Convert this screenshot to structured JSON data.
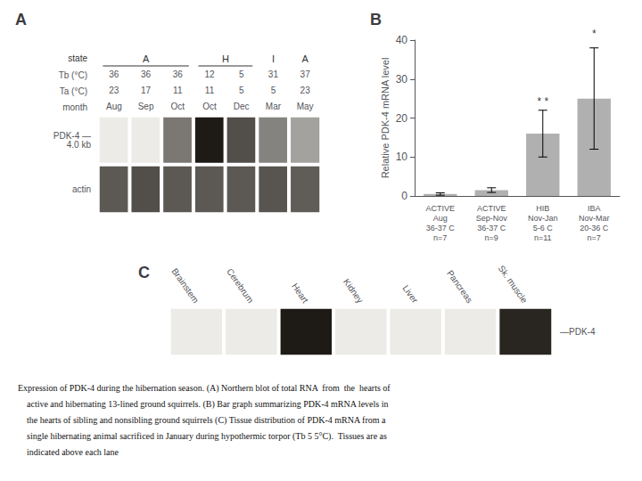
{
  "chart_data": [
    {
      "type": "heatmap",
      "title": "A",
      "categories": [
        "Aug",
        "Sep",
        "Oct",
        "Oct",
        "Dec",
        "Mar",
        "May"
      ],
      "xlabel": "month",
      "rows": [
        "PDK-4 —\n4.0 kb",
        "actin"
      ],
      "cells": [
        [
          0.0,
          0.0,
          0.55,
          1.0,
          0.75,
          0.5,
          0.35
        ],
        [
          0.7,
          0.75,
          0.7,
          0.7,
          0.7,
          0.72,
          0.68
        ]
      ],
      "header_rows": [
        {
          "label": "Tb (°C)",
          "values": [
            "36",
            "36",
            "36",
            "12",
            "5",
            "31",
            "37"
          ]
        },
        {
          "label": "Ta (°C)",
          "values": [
            "23",
            "17",
            "11",
            "11",
            "5",
            "5",
            "23"
          ]
        }
      ],
      "state_label": "state",
      "states": [
        {
          "label": "A",
          "lanes": 3
        },
        {
          "label": "H",
          "lanes": 2
        },
        {
          "label": "I",
          "lanes": 1
        },
        {
          "label": "A",
          "lanes": 1
        }
      ]
    },
    {
      "type": "bar",
      "title": "B",
      "categories": [
        "ACTIVE\nAug\n36-37 C\nn=7",
        "ACTIVE\nSep-Nov\n36-37 C\nn=9",
        "HIB\nNov-Jan\n5-6 C\nn=11",
        "IBA\nNov-Mar\n20-36 C\nn=7"
      ],
      "values": [
        0.5,
        1.5,
        16.0,
        25.0
      ],
      "errors": [
        0.3,
        0.6,
        6.0,
        13.0
      ],
      "color": "#b0b0b0",
      "ylabel": "Relative PDK-4 mRNA level",
      "ylim": [
        0,
        40
      ],
      "yticks": [
        0,
        10,
        20,
        30,
        40
      ],
      "grid": false,
      "annotations": [
        {
          "text": "* *",
          "category": "HIB\nNov-Jan\n5-6 C\nn=11",
          "y": 22.8
        },
        {
          "text": "*",
          "category": "IBA\nNov-Mar\n20-36 C\nn=7",
          "y": 40.2
        }
      ]
    },
    {
      "type": "heatmap",
      "title": "C",
      "categories": [
        "Brainstem",
        "Cerebrum",
        "Heart",
        "Kidney",
        "Liver",
        "Pancreas",
        "Sk. muscle"
      ],
      "rows": [
        "—PDK-4"
      ],
      "cells": [
        [
          0.0,
          0.0,
          0.9,
          0.0,
          0.0,
          0.0,
          0.85
        ]
      ]
    }
  ],
  "caption": [
    "Expression of PDK-4 during the hibernation season. (A) Northern blot of total RNA  from  the  hearts of",
    "    active and hibernating 13-lined ground squirrels. (B) Bar graph summarizing PDK-4 mRNA levels in",
    "    the hearts of sibling and nonsibling ground squirrels (C) Tissue distribution of PDK-4 mRNA from a",
    "    single hibernating animal sacrificed in January during hypothermic torpor (Tb 5 5°C).  Tissues are as",
    "    indicated above each lane"
  ]
}
